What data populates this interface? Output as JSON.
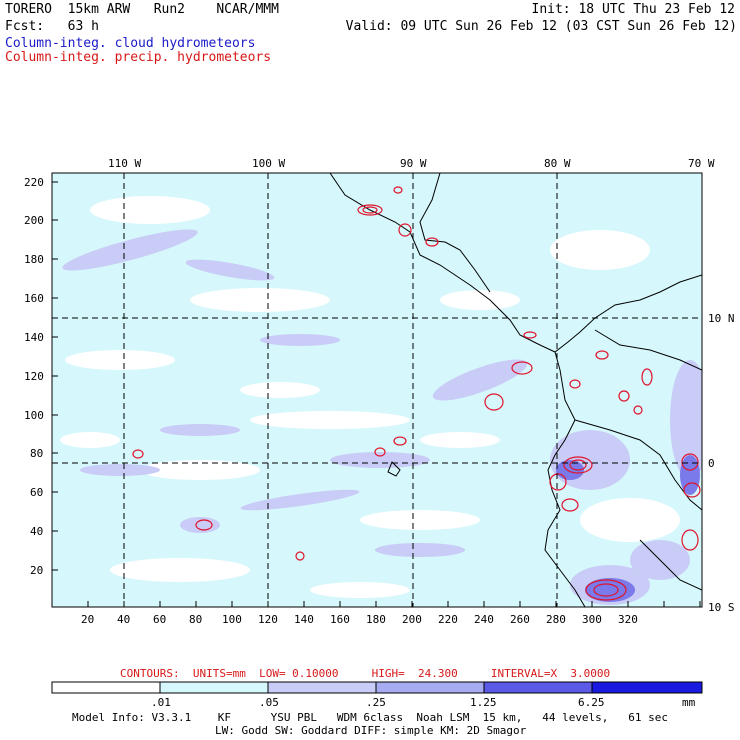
{
  "header": {
    "line1_left": "TORERO  15km ARW   Run2    NCAR/MMM",
    "line1_right": "Init: 18 UTC Thu 23 Feb 12",
    "line2_left": "Fcst:   63 h",
    "line2_right": "Valid: 09 UTC Sun 26 Feb 12 (03 CST Sun 26 Feb 12)",
    "line3": "Column-integ. cloud hydrometeors",
    "line4": "Column-integ. precip. hydrometeors"
  },
  "colors": {
    "cloud_label": "#1a1ac8",
    "precip_label": "#d81818",
    "fill_levels": [
      "#ffffff",
      "#d6f7fb",
      "#c9ccf6",
      "#a7abf1",
      "#7a7aea",
      "#4a4ae4",
      "#1a1ae0"
    ],
    "contour": "#e0142c"
  },
  "map": {
    "top_lon_labels": [
      "110 W",
      "100 W",
      "90 W",
      "80 W",
      "70 W"
    ],
    "right_lat_labels": [
      "10 N",
      "0",
      "10 S"
    ],
    "left_ticks": [
      "220",
      "200",
      "180",
      "160",
      "140",
      "120",
      "100",
      "80",
      "60",
      "40",
      "20"
    ],
    "bottom_ticks": [
      "20",
      "40",
      "60",
      "80",
      "100",
      "120",
      "140",
      "160",
      "180",
      "200",
      "220",
      "240",
      "260",
      "280",
      "300",
      "320"
    ]
  },
  "footer": {
    "contour_info": "CONTOURS:  UNITS=mm  LOW= 0.10000     HIGH=  24.300     INTERVAL=X  3.0000",
    "colorbar_labels": [
      ".01",
      ".05",
      ".25",
      "1.25",
      "6.25"
    ],
    "colorbar_unit": "mm",
    "model_info_1": "Model Info: V3.3.1    KF      YSU PBL   WDM 6class  Noah LSM  15 km,   44 levels,   61 sec",
    "model_info_2": "LW: Godd SW: Goddard DIFF: simple KM: 2D Smagor"
  }
}
